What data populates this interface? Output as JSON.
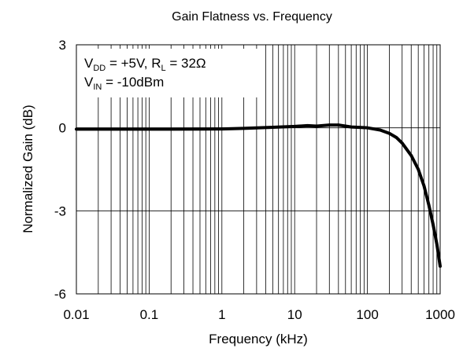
{
  "chart_data": {
    "type": "line",
    "title": "Gain Flatness vs. Frequency",
    "xlabel": "Frequency (kHz)",
    "ylabel": "Normalized Gain (dB)",
    "x_scale": "log",
    "xlim": [
      0.01,
      1000
    ],
    "ylim": [
      -6,
      3
    ],
    "x_ticks": [
      0.01,
      0.1,
      1,
      10,
      100,
      1000
    ],
    "x_tick_labels": [
      "0.01",
      "0.1",
      "1",
      "10",
      "100",
      "1000"
    ],
    "y_ticks": [
      3,
      0,
      -3,
      -6
    ],
    "y_tick_labels": [
      "3",
      "0",
      "-3",
      "-6"
    ],
    "grid": true,
    "annotation": {
      "line1": {
        "vdd_main": "V",
        "vdd_sub": "DD",
        "vdd_rest": " = +5V, R",
        "rl_sub": "L",
        "rl_rest": " = 32Ω"
      },
      "line2": {
        "vin_main": "V",
        "vin_sub": "IN",
        "vin_rest": " = -10dBm"
      }
    },
    "series": [
      {
        "x": [
          0.01,
          0.05,
          0.2,
          1,
          2,
          5,
          10,
          15,
          20,
          30,
          40,
          60,
          100,
          150,
          200,
          250,
          300,
          400,
          500,
          600,
          700,
          800,
          900,
          1000
        ],
        "y": [
          -0.05,
          -0.05,
          -0.05,
          -0.04,
          -0.02,
          0.02,
          0.05,
          0.08,
          0.06,
          0.1,
          0.1,
          0.03,
          0.0,
          -0.08,
          -0.2,
          -0.35,
          -0.55,
          -1.0,
          -1.5,
          -2.1,
          -2.8,
          -3.5,
          -4.2,
          -5.0
        ]
      }
    ]
  }
}
